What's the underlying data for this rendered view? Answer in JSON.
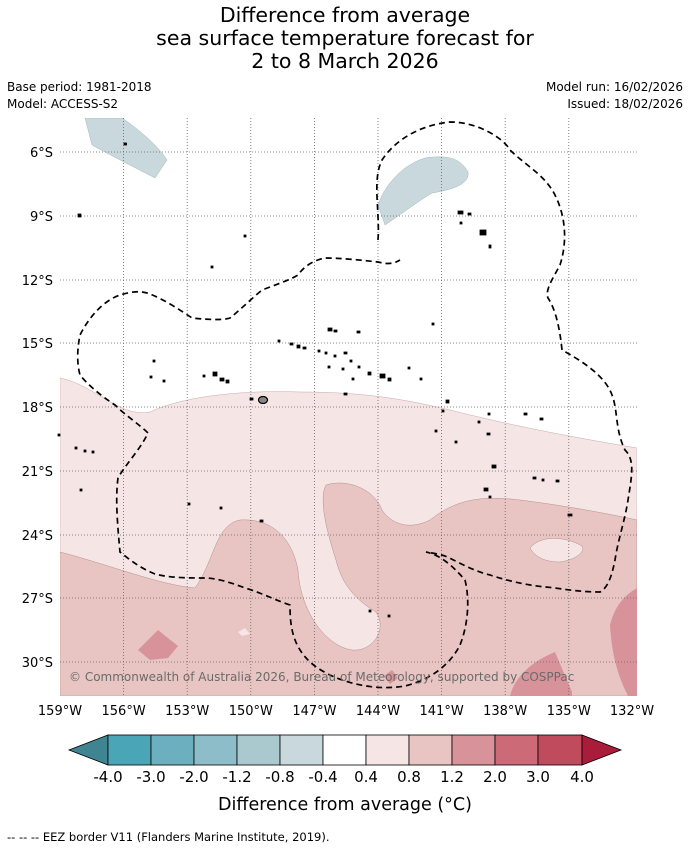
{
  "title_lines": [
    "Difference from average",
    "sea surface temperature forecast for",
    "2 to 8 March 2026"
  ],
  "base_period": "Base period: 1981-2018",
  "model": "Model: ACCESS-S2",
  "model_run": "Model run: 16/02/2026",
  "issued": "Issued: 18/02/2026",
  "copyright": "© Commonwealth of Australia 2026, Bureau of Meteorology, supported by COSPPac",
  "lat_labels": [
    "6°S",
    "9°S",
    "12°S",
    "15°S",
    "18°S",
    "21°S",
    "24°S",
    "27°S",
    "30°S"
  ],
  "lon_labels": [
    "159°W",
    "156°W",
    "153°W",
    "150°W",
    "147°W",
    "144°W",
    "141°W",
    "138°W",
    "135°W",
    "132°W"
  ],
  "colorbar": {
    "ticks": [
      "-4.0",
      "-3.0",
      "-2.0",
      "-1.2",
      "-0.8",
      "-0.4",
      "0.4",
      "0.8",
      "1.2",
      "2.0",
      "3.0",
      "4.0"
    ],
    "colors": [
      "#3f8591",
      "#4aa6b6",
      "#6cb0bf",
      "#8cbdc8",
      "#a9c9cf",
      "#c8d8dc",
      "#ffffff",
      "#f5e5e5",
      "#e8c5c3",
      "#d8929a",
      "#cc6a77",
      "#c04b5c",
      "#a91c3a"
    ],
    "label": "Difference from average (°C)"
  },
  "legend_note": "-- -- -- EEZ border V11 (Flanders Marine Institute, 2019)."
}
